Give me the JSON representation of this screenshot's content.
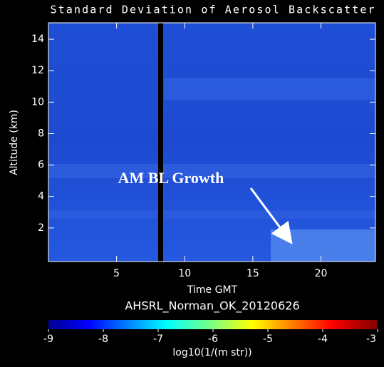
{
  "chart_data": {
    "type": "heatmap",
    "title": "Standard Deviation of Aerosol Backscatter",
    "xlabel": "Time GMT",
    "ylabel": "Altitude (km)",
    "subtitle": "AHSRL_Norman_OK_20120626",
    "xlim": [
      0,
      24
    ],
    "xticks": [
      5,
      10,
      15,
      20
    ],
    "ylim": [
      0,
      15
    ],
    "yticks": [
      2,
      4,
      6,
      8,
      10,
      12,
      14
    ],
    "colorbar": {
      "label": "log10(1/(m str))",
      "lim": [
        -9,
        -3
      ],
      "ticks": [
        -9,
        -8,
        -7,
        -6,
        -5,
        -4,
        -3
      ]
    },
    "annotations": [
      {
        "text": "AM BL Growth"
      }
    ]
  }
}
